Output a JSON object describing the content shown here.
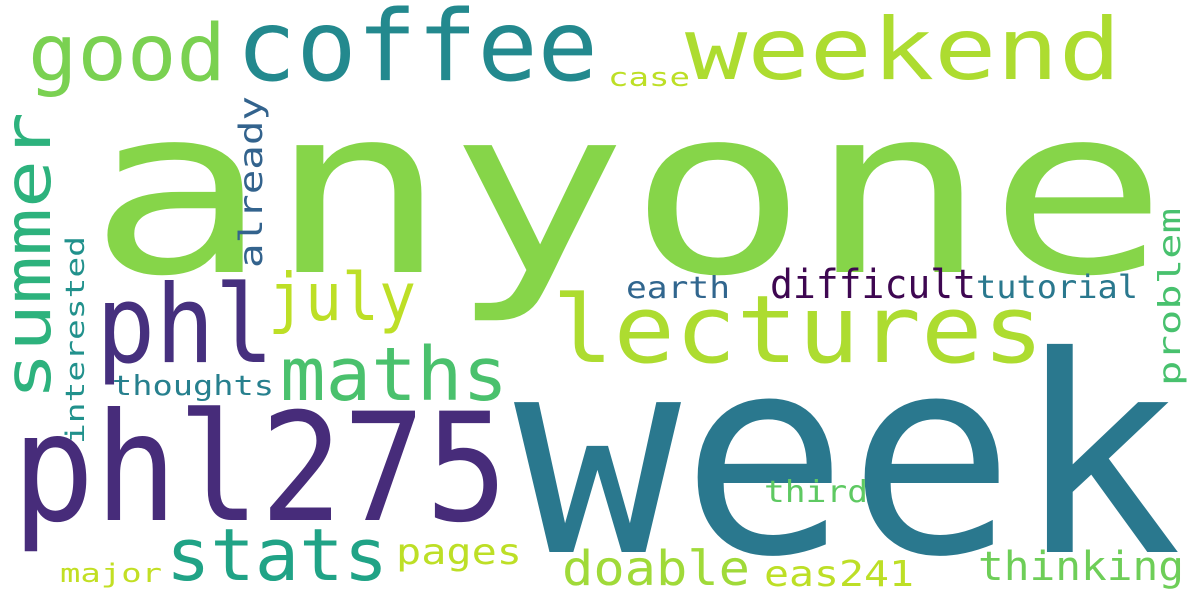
{
  "words": [
    {
      "text": "anyone",
      "color": "#86d549"
    },
    {
      "text": "week",
      "color": "#2a788e"
    },
    {
      "text": "phl275",
      "color": "#472c7a"
    },
    {
      "text": "lectures",
      "color": "#addc30"
    },
    {
      "text": "coffee",
      "color": "#23898e"
    },
    {
      "text": "weekend",
      "color": "#addc30"
    },
    {
      "text": "phl",
      "color": "#46307e"
    },
    {
      "text": "summer",
      "color": "#2db27d"
    },
    {
      "text": "good",
      "color": "#7ad151"
    },
    {
      "text": "maths",
      "color": "#4ac16d"
    },
    {
      "text": "stats",
      "color": "#20a386"
    },
    {
      "text": "july",
      "color": "#bddf26"
    },
    {
      "text": "doable",
      "color": "#a0da39"
    },
    {
      "text": "difficult",
      "color": "#3e0751"
    },
    {
      "text": "thinking",
      "color": "#6ece58"
    },
    {
      "text": "eas241",
      "color": "#bddf26"
    },
    {
      "text": "pages",
      "color": "#bddf26"
    },
    {
      "text": "tutorial",
      "color": "#2a788e"
    },
    {
      "text": "already",
      "color": "#33638d"
    },
    {
      "text": "problem",
      "color": "#48c16e"
    },
    {
      "text": "earth",
      "color": "#31668e"
    },
    {
      "text": "thoughts",
      "color": "#27808e"
    },
    {
      "text": "interested",
      "color": "#21918c"
    },
    {
      "text": "third",
      "color": "#5ec962"
    },
    {
      "text": "case",
      "color": "#bddf26"
    },
    {
      "text": "major",
      "color": "#c2df23"
    }
  ]
}
